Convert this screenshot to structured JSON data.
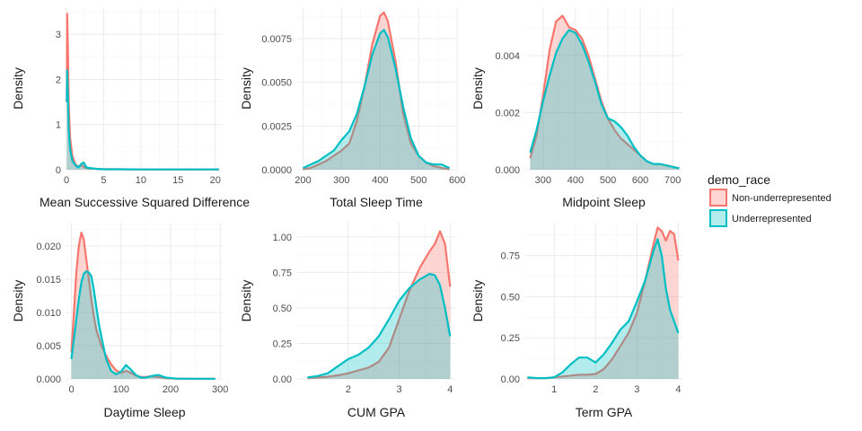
{
  "colors": {
    "non_underrepresented": "#F8766D",
    "underrepresented": "#00BFC4",
    "grid_major": "#EBEBEB",
    "grid_minor": "#F5F5F5"
  },
  "chart_data": [
    {
      "type": "area",
      "xlabel": "Mean Successive Squared Difference",
      "ylabel": "Density",
      "xlim": [
        0,
        21
      ],
      "ylim": [
        0,
        3.6
      ],
      "xticks": [
        0,
        5,
        10,
        15,
        20
      ],
      "yticks": [
        0,
        1,
        2,
        3
      ],
      "ytick_labels": [
        "0",
        "1",
        "2",
        "3"
      ],
      "grid": true,
      "series": [
        {
          "name": "Non-underrepresented",
          "x": [
            0.05,
            0.1,
            0.2,
            0.3,
            0.5,
            0.8,
            1.2,
            1.6,
            2,
            2.5,
            3,
            4,
            5,
            7,
            10,
            15,
            20.5
          ],
          "y": [
            1.5,
            3.45,
            2.6,
            1.5,
            0.7,
            0.3,
            0.12,
            0.06,
            0.1,
            0.05,
            0.03,
            0.02,
            0.01,
            0.01,
            0.005,
            0.005,
            0.005
          ]
        },
        {
          "name": "Underrepresented",
          "x": [
            0.05,
            0.1,
            0.2,
            0.3,
            0.5,
            0.8,
            1.2,
            1.6,
            2,
            2.3,
            2.7,
            3,
            4,
            5,
            7,
            10,
            15,
            20.5
          ],
          "y": [
            1.5,
            2.2,
            1.6,
            0.9,
            0.45,
            0.2,
            0.1,
            0.05,
            0.13,
            0.16,
            0.05,
            0.04,
            0.02,
            0.01,
            0.01,
            0.005,
            0.005,
            0.005
          ]
        }
      ]
    },
    {
      "type": "area",
      "xlabel": "Total Sleep Time",
      "ylabel": "Density",
      "xlim": [
        185,
        595
      ],
      "ylim": [
        0,
        0.0093
      ],
      "xticks": [
        200,
        300,
        400,
        500,
        600
      ],
      "yticks": [
        0,
        0.0025,
        0.005,
        0.0075
      ],
      "ytick_labels": [
        "0.0000",
        "0.0025",
        "0.0050",
        "0.0075"
      ],
      "grid": true,
      "series": [
        {
          "name": "Non-underrepresented",
          "x": [
            200,
            220,
            240,
            260,
            280,
            300,
            320,
            340,
            360,
            380,
            400,
            410,
            420,
            440,
            460,
            480,
            500,
            520,
            540,
            560,
            580
          ],
          "y": [
            2e-05,
            0.0001,
            0.0003,
            0.0005,
            0.0008,
            0.0011,
            0.0015,
            0.0028,
            0.0048,
            0.0072,
            0.0088,
            0.009,
            0.0085,
            0.0062,
            0.0032,
            0.0015,
            0.0008,
            0.0004,
            0.0002,
            0.0001,
            3e-05
          ]
        },
        {
          "name": "Underrepresented",
          "x": [
            200,
            220,
            240,
            260,
            280,
            300,
            320,
            340,
            360,
            380,
            400,
            410,
            420,
            440,
            460,
            480,
            500,
            520,
            540,
            560,
            580
          ],
          "y": [
            0.0001,
            0.0003,
            0.0005,
            0.0008,
            0.0011,
            0.0017,
            0.0022,
            0.0032,
            0.0048,
            0.0066,
            0.0078,
            0.008,
            0.0076,
            0.0058,
            0.0036,
            0.0018,
            0.0008,
            0.0004,
            0.0003,
            0.0003,
            0.0001
          ]
        }
      ]
    },
    {
      "type": "area",
      "xlabel": "Midpoint Sleep",
      "ylabel": "Density",
      "xlim": [
        245,
        730
      ],
      "ylim": [
        0,
        0.0057
      ],
      "xticks": [
        300,
        400,
        500,
        600,
        700
      ],
      "yticks": [
        0,
        0.002,
        0.004
      ],
      "ytick_labels": [
        "0.000",
        "0.002",
        "0.004"
      ],
      "grid": true,
      "series": [
        {
          "name": "Non-underrepresented",
          "x": [
            260,
            280,
            300,
            320,
            340,
            360,
            380,
            400,
            420,
            440,
            460,
            480,
            500,
            520,
            540,
            560,
            580,
            600,
            620,
            640,
            660,
            680,
            700,
            720
          ],
          "y": [
            0.0004,
            0.0012,
            0.0026,
            0.0042,
            0.0052,
            0.0054,
            0.005,
            0.0049,
            0.0046,
            0.004,
            0.0032,
            0.0024,
            0.0018,
            0.0014,
            0.0011,
            0.0009,
            0.0007,
            0.0005,
            0.0003,
            0.0002,
            0.0002,
            0.00015,
            0.0001,
            5e-05
          ]
        },
        {
          "name": "Underrepresented",
          "x": [
            260,
            280,
            300,
            320,
            340,
            360,
            380,
            400,
            420,
            440,
            460,
            480,
            500,
            520,
            540,
            560,
            580,
            600,
            620,
            640,
            660,
            680,
            700,
            720
          ],
          "y": [
            0.0006,
            0.0014,
            0.0024,
            0.0033,
            0.0041,
            0.0046,
            0.0049,
            0.0048,
            0.0044,
            0.0038,
            0.0031,
            0.0023,
            0.0018,
            0.0017,
            0.0015,
            0.0012,
            0.0008,
            0.0005,
            0.0003,
            0.0002,
            0.0002,
            0.00015,
            0.0001,
            5e-05
          ]
        }
      ]
    },
    {
      "type": "area",
      "xlabel": "Daytime Sleep",
      "ylabel": "Density",
      "xlim": [
        -10,
        305
      ],
      "ylim": [
        0,
        0.0235
      ],
      "xticks": [
        0,
        100,
        200,
        300
      ],
      "yticks": [
        0,
        0.005,
        0.01,
        0.015,
        0.02
      ],
      "ytick_labels": [
        "0.000",
        "0.005",
        "0.010",
        "0.015",
        "0.020"
      ],
      "grid": true,
      "series": [
        {
          "name": "Non-underrepresented",
          "x": [
            0,
            5,
            10,
            15,
            20,
            25,
            30,
            35,
            40,
            45,
            50,
            60,
            70,
            80,
            90,
            100,
            110,
            120,
            130,
            140,
            150,
            160,
            175,
            190,
            210,
            240,
            270,
            290
          ],
          "y": [
            0.004,
            0.01,
            0.016,
            0.02,
            0.022,
            0.021,
            0.018,
            0.015,
            0.012,
            0.0095,
            0.0075,
            0.005,
            0.0035,
            0.0022,
            0.0013,
            0.0009,
            0.0012,
            0.0009,
            0.0005,
            0.0003,
            0.0003,
            0.0004,
            0.0003,
            0.0001,
            5e-05,
            3e-05,
            3e-05,
            3e-05
          ]
        },
        {
          "name": "Underrepresented",
          "x": [
            0,
            5,
            10,
            15,
            20,
            25,
            30,
            35,
            40,
            45,
            50,
            55,
            60,
            70,
            80,
            90,
            100,
            110,
            120,
            130,
            140,
            150,
            160,
            175,
            190,
            210,
            240,
            270,
            290
          ],
          "y": [
            0.003,
            0.006,
            0.009,
            0.012,
            0.0145,
            0.0158,
            0.0162,
            0.016,
            0.0155,
            0.0135,
            0.011,
            0.0085,
            0.0065,
            0.003,
            0.0012,
            0.0007,
            0.0011,
            0.0021,
            0.0014,
            0.0006,
            0.0002,
            0.0002,
            0.0004,
            0.0006,
            0.0002,
            5e-05,
            3e-05,
            3e-05,
            3e-05
          ]
        }
      ]
    },
    {
      "type": "area",
      "xlabel": "CUM GPA",
      "ylabel": "Density",
      "xlim": [
        1.0,
        4.1
      ],
      "ylim": [
        0,
        1.1
      ],
      "xticks": [
        2,
        3,
        4
      ],
      "yticks": [
        0,
        0.25,
        0.5,
        0.75,
        1
      ],
      "ytick_labels": [
        "0.00",
        "0.25",
        "0.50",
        "0.75",
        "1.00"
      ],
      "grid": true,
      "series": [
        {
          "name": "Non-underrepresented",
          "x": [
            1.2,
            1.4,
            1.6,
            1.8,
            2,
            2.2,
            2.4,
            2.6,
            2.8,
            3,
            3.2,
            3.4,
            3.6,
            3.7,
            3.8,
            3.9,
            4
          ],
          "y": [
            0.005,
            0.01,
            0.015,
            0.025,
            0.04,
            0.06,
            0.08,
            0.12,
            0.22,
            0.42,
            0.62,
            0.78,
            0.9,
            0.95,
            1.04,
            0.95,
            0.65
          ]
        },
        {
          "name": "Underrepresented",
          "x": [
            1.2,
            1.4,
            1.6,
            1.8,
            2,
            2.2,
            2.4,
            2.6,
            2.8,
            3,
            3.2,
            3.4,
            3.6,
            3.7,
            3.8,
            3.9,
            4
          ],
          "y": [
            0.01,
            0.02,
            0.04,
            0.09,
            0.14,
            0.17,
            0.22,
            0.3,
            0.42,
            0.55,
            0.64,
            0.7,
            0.74,
            0.73,
            0.66,
            0.5,
            0.3
          ]
        }
      ]
    },
    {
      "type": "area",
      "xlabel": "Term GPA",
      "ylabel": "Density",
      "xlim": [
        0.3,
        4.1
      ],
      "ylim": [
        0,
        0.95
      ],
      "xticks": [
        1,
        2,
        3,
        4
      ],
      "yticks": [
        0,
        0.25,
        0.5,
        0.75
      ],
      "ytick_labels": [
        "0.00",
        "0.25",
        "0.50",
        "0.75"
      ],
      "grid": true,
      "series": [
        {
          "name": "Non-underrepresented",
          "x": [
            0.35,
            0.6,
            0.8,
            1,
            1.2,
            1.4,
            1.6,
            1.8,
            2,
            2.2,
            2.4,
            2.6,
            2.8,
            3,
            3.2,
            3.4,
            3.5,
            3.6,
            3.7,
            3.8,
            3.9,
            4
          ],
          "y": [
            0.005,
            0.005,
            0.005,
            0.01,
            0.015,
            0.02,
            0.025,
            0.025,
            0.03,
            0.06,
            0.12,
            0.2,
            0.28,
            0.4,
            0.6,
            0.82,
            0.92,
            0.9,
            0.84,
            0.9,
            0.88,
            0.72
          ]
        },
        {
          "name": "Underrepresented",
          "x": [
            0.35,
            0.6,
            0.8,
            1,
            1.2,
            1.4,
            1.6,
            1.8,
            2,
            2.2,
            2.4,
            2.6,
            2.8,
            3,
            3.2,
            3.4,
            3.5,
            3.6,
            3.7,
            3.8,
            3.9,
            4
          ],
          "y": [
            0.01,
            0.005,
            0.005,
            0.01,
            0.04,
            0.09,
            0.13,
            0.13,
            0.1,
            0.15,
            0.22,
            0.3,
            0.35,
            0.47,
            0.6,
            0.78,
            0.85,
            0.75,
            0.55,
            0.42,
            0.35,
            0.28
          ]
        }
      ]
    }
  ],
  "legend": {
    "title": "demo_race",
    "position": "right",
    "items": [
      {
        "label": "Non-underrepresented",
        "color": "#F8766D"
      },
      {
        "label": "Underrepresented",
        "color": "#00BFC4"
      }
    ]
  }
}
